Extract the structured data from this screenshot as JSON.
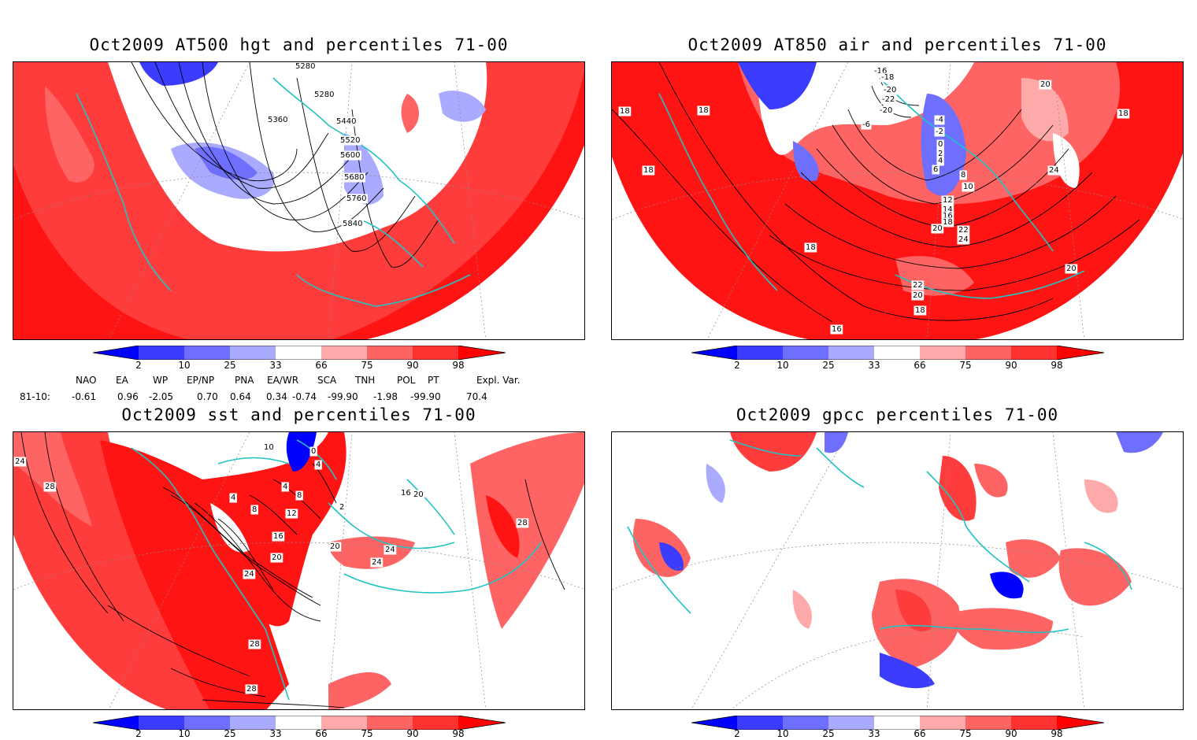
{
  "panels": [
    {
      "title": "Oct2009 AT500 hgt and percentiles 71-00",
      "contour_labels": [
        "5280",
        "5280",
        "5360",
        "5440",
        "5520",
        "5600",
        "5680",
        "5760",
        "5840"
      ]
    },
    {
      "title": "Oct2009 AT850 air and percentiles 71-00",
      "contour_labels": [
        "18",
        "18",
        "18",
        "18",
        "-16",
        "-18",
        "-20",
        "-22",
        "-20",
        "-6",
        "-4",
        "-2",
        "0",
        "2",
        "4",
        "6",
        "8",
        "10",
        "12",
        "14",
        "16",
        "18",
        "20",
        "22",
        "24",
        "24",
        "20",
        "20",
        "18",
        "22",
        "20",
        "18",
        "16"
      ]
    },
    {
      "title": "Oct2009 sst and percentiles 71-00",
      "contour_labels": [
        "24",
        "28",
        "10",
        "0",
        "4",
        "4",
        "8",
        "8",
        "4",
        "12",
        "16",
        "20",
        "24",
        "28",
        "28",
        "20",
        "24",
        "24",
        "16",
        "20",
        "2",
        "28"
      ]
    },
    {
      "title": "Oct2009 gpcc percentiles 71-00",
      "contour_labels": []
    }
  ],
  "colorbar": {
    "labels": [
      "2",
      "10",
      "25",
      "33",
      "66",
      "75",
      "90",
      "98"
    ],
    "colors": {
      "lt2": "#0000ff",
      "b2_10": "#3c3cff",
      "b10_25": "#6e6eff",
      "b25_33": "#aaaaff",
      "neutral": "#ffffff",
      "r66_75": "#ffaaaa",
      "r75_90": "#ff6464",
      "r90_98": "#ff3232",
      "gt98": "#ff0000"
    }
  },
  "teleconnections": {
    "headers": [
      "NAO",
      "EA",
      "WP",
      "EP/NP",
      "PNA",
      "EA/WR",
      "SCA",
      "TNH",
      "POL",
      "PT",
      "Expl. Var."
    ],
    "row_label": "81-10:",
    "values": [
      "-0.61",
      "0.96",
      "-2.05",
      "0.70",
      "0.64",
      "0.34",
      "-0.74",
      "-99.90",
      "-1.98",
      "-99.90",
      "70.4"
    ]
  },
  "icons": {
    "map": "polar-stereographic-map",
    "coast": "coastline-outline",
    "grid": "lat-lon-graticule"
  }
}
